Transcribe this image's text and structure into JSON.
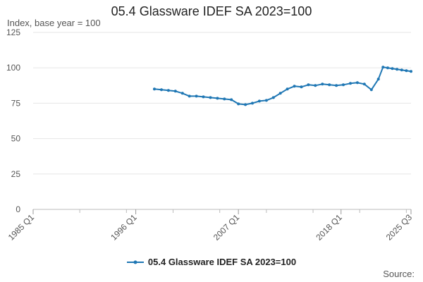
{
  "chart_data": {
    "type": "line",
    "title": "05.4 Glassware IDEF SA 2023=100",
    "ylabel": "Index, base year = 100",
    "xlabel": "",
    "ylim": [
      0,
      125
    ],
    "yticks": [
      0,
      25,
      50,
      75,
      100,
      125
    ],
    "xlim": [
      "1985 Q1",
      "2025 Q3"
    ],
    "xticks": [
      "1985 Q1",
      "1996 Q1",
      "2007 Q1",
      "2018 Q1",
      "2025 Q3"
    ],
    "grid": true,
    "legend_position": "bottom",
    "series": [
      {
        "name": "05.4 Glassware IDEF SA 2023=100",
        "color": "#1f77b4",
        "x": [
          "1998 Q1",
          "1998 Q4",
          "1999 Q3",
          "2000 Q2",
          "2001 Q1",
          "2001 Q4",
          "2002 Q3",
          "2003 Q2",
          "2004 Q1",
          "2004 Q4",
          "2005 Q3",
          "2006 Q2",
          "2007 Q1",
          "2007 Q4",
          "2008 Q3",
          "2009 Q2",
          "2010 Q1",
          "2010 Q4",
          "2011 Q3",
          "2012 Q2",
          "2013 Q1",
          "2013 Q4",
          "2014 Q3",
          "2015 Q2",
          "2016 Q1",
          "2016 Q4",
          "2017 Q3",
          "2018 Q2",
          "2019 Q1",
          "2019 Q4",
          "2020 Q3",
          "2021 Q2",
          "2022 Q1",
          "2022 Q3",
          "2023 Q1",
          "2023 Q3",
          "2024 Q1",
          "2024 Q3",
          "2025 Q1",
          "2025 Q3"
        ],
        "values": [
          85,
          84.5,
          84,
          83.5,
          82,
          80,
          80,
          79.5,
          79,
          78.5,
          78,
          77.5,
          74.5,
          74,
          75,
          76.5,
          77,
          79,
          82,
          85,
          87,
          86.5,
          88,
          87.5,
          88.5,
          88,
          87.5,
          88,
          89,
          89.5,
          88.5,
          84.5,
          92,
          100.5,
          100,
          99.5,
          99,
          98.5,
          98,
          97.5
        ]
      }
    ]
  },
  "source_label": "Source:"
}
